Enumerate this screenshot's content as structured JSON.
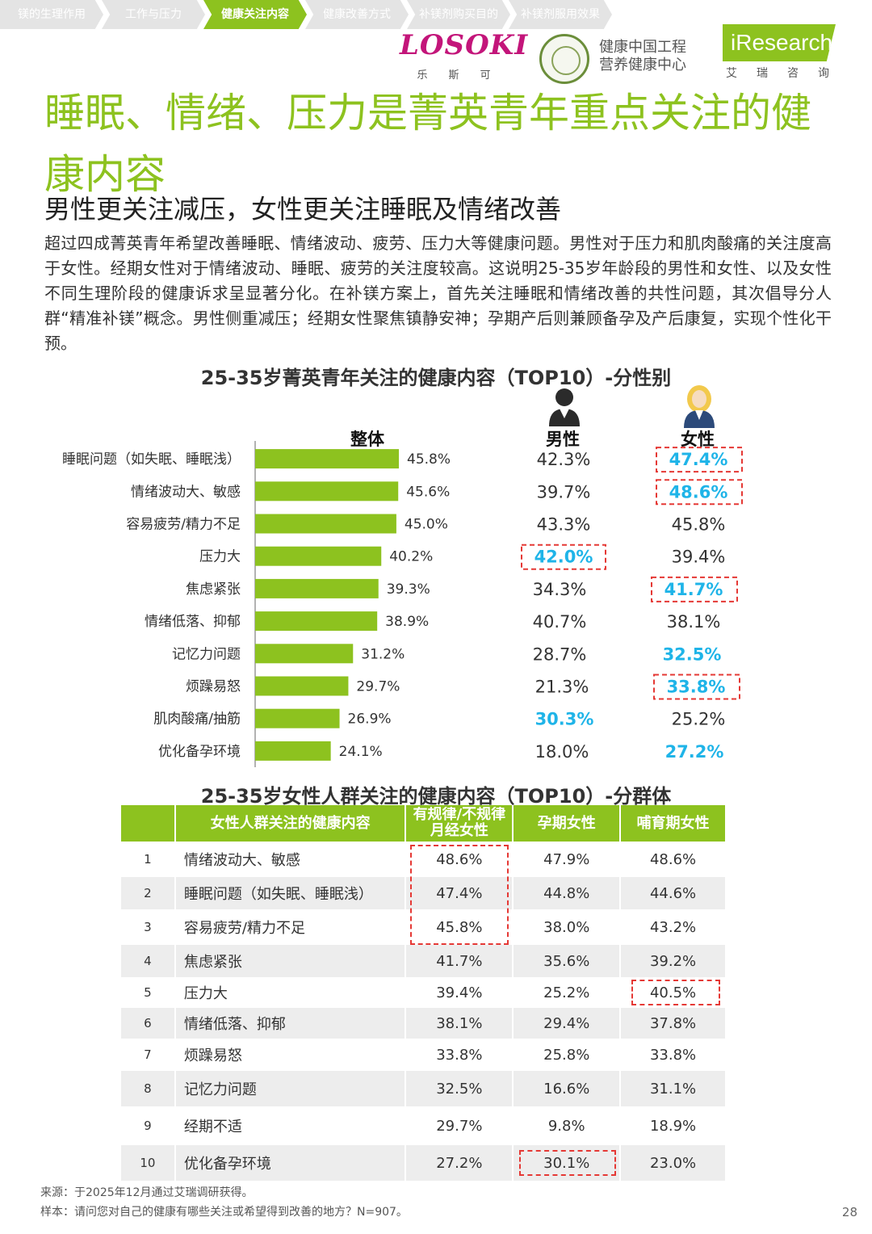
{
  "nav": [
    "镁的生理作用",
    "工作与压力",
    "健康关注内容",
    "健康改善方式",
    "补镁剂购买目的",
    "补镁剂服用效果"
  ],
  "nav_active": 2,
  "logos": {
    "losoki": "LOSOKI",
    "losoki_sub": "乐斯可",
    "health_org_line1": "健康中国工程",
    "health_org_line2": "营养健康中心",
    "iresearch": "iResearch",
    "iresearch_sub": "艾瑞咨询"
  },
  "title": "睡眠、情绪、压力是菁英青年重点关注的健康内容",
  "subtitle": "男性更关注减压，女性更关注睡眠及情绪改善",
  "paragraph": "超过四成菁英青年希望改善睡眠、情绪波动、疲劳、压力大等健康问题。男性对于压力和肌肉酸痛的关注度高于女性。经期女性对于情绪波动、睡眠、疲劳的关注度较高。这说明25-35岁年龄段的男性和女性、以及女性不同生理阶段的健康诉求呈显著分化。在补镁方案上，首先关注睡眠和情绪改善的共性问题，其次倡导分人群“精准补镁”概念。男性侧重减压；经期女性聚焦镇静安神；孕期产后则兼顾备孕及产后康复，实现个性化干预。",
  "chart_data": [
    {
      "type": "bar",
      "title": "25-35岁菁英青年关注的健康内容（TOP10）-分性别",
      "categories": [
        "睡眠问题（如失眠、睡眠浅）",
        "情绪波动大、敏感",
        "容易疲劳/精力不足",
        "压力大",
        "焦虑紧张",
        "情绪低落、抑郁",
        "记忆力问题",
        "烦躁易怒",
        "肌肉酸痛/抽筋",
        "优化备孕环境"
      ],
      "series": [
        {
          "name": "整体",
          "values": [
            45.8,
            45.6,
            45.0,
            40.2,
            39.3,
            38.9,
            31.2,
            29.7,
            26.9,
            24.1
          ]
        },
        {
          "name": "男性",
          "values": [
            42.3,
            39.7,
            43.3,
            42.0,
            34.3,
            40.7,
            28.7,
            21.3,
            30.3,
            18.0
          ]
        },
        {
          "name": "女性",
          "values": [
            47.4,
            48.6,
            45.8,
            39.4,
            41.7,
            38.1,
            32.5,
            33.8,
            25.2,
            27.2
          ]
        }
      ],
      "value_suffix": "%",
      "highlight_male": [
        false,
        false,
        false,
        true,
        false,
        false,
        false,
        false,
        true,
        false
      ],
      "highlight_female": [
        true,
        true,
        false,
        false,
        true,
        false,
        true,
        true,
        false,
        true
      ],
      "boxed_male": [
        false,
        false,
        false,
        true,
        false,
        false,
        false,
        false,
        false,
        false
      ],
      "boxed_female": [
        true,
        true,
        false,
        false,
        true,
        false,
        false,
        true,
        false,
        false
      ],
      "xlim": [
        0,
        50
      ],
      "colors": {
        "bar": "#8dc21f",
        "highlight": "#1fb4e8"
      }
    },
    {
      "type": "table",
      "title": "25-35岁女性人群关注的健康内容（TOP10）-分群体",
      "headers": [
        "",
        "女性人群关注的健康内容",
        "有规律/不规律月经女性",
        "孕期女性",
        "哺育期女性"
      ],
      "rows": [
        {
          "rank": "1",
          "item": "情绪波动大、敏感",
          "menstrual": "48.6%",
          "pregnant": "47.9%",
          "nursing": "48.6%"
        },
        {
          "rank": "2",
          "item": "睡眠问题（如失眠、睡眠浅）",
          "menstrual": "47.4%",
          "pregnant": "44.8%",
          "nursing": "44.6%"
        },
        {
          "rank": "3",
          "item": "容易疲劳/精力不足",
          "menstrual": "45.8%",
          "pregnant": "38.0%",
          "nursing": "43.2%"
        },
        {
          "rank": "4",
          "item": "焦虑紧张",
          "menstrual": "41.7%",
          "pregnant": "35.6%",
          "nursing": "39.2%"
        },
        {
          "rank": "5",
          "item": "压力大",
          "menstrual": "39.4%",
          "pregnant": "25.2%",
          "nursing": "40.5%"
        },
        {
          "rank": "6",
          "item": "情绪低落、抑郁",
          "menstrual": "38.1%",
          "pregnant": "29.4%",
          "nursing": "37.8%"
        },
        {
          "rank": "7",
          "item": "烦躁易怒",
          "menstrual": "33.8%",
          "pregnant": "25.8%",
          "nursing": "33.8%"
        },
        {
          "rank": "8",
          "item": "记忆力问题",
          "menstrual": "32.5%",
          "pregnant": "16.6%",
          "nursing": "31.1%"
        },
        {
          "rank": "9",
          "item": "经期不适",
          "menstrual": "29.7%",
          "pregnant": "9.8%",
          "nursing": "18.9%"
        },
        {
          "rank": "10",
          "item": "优化备孕环境",
          "menstrual": "27.2%",
          "pregnant": "30.1%",
          "nursing": "23.0%"
        }
      ]
    }
  ],
  "footer": {
    "source": "来源：于2025年12月通过艾瑞调研获得。",
    "sample": "样本：请问您对自己的健康有哪些关注或希望得到改善的地方？N=907。"
  },
  "page_number": "28"
}
